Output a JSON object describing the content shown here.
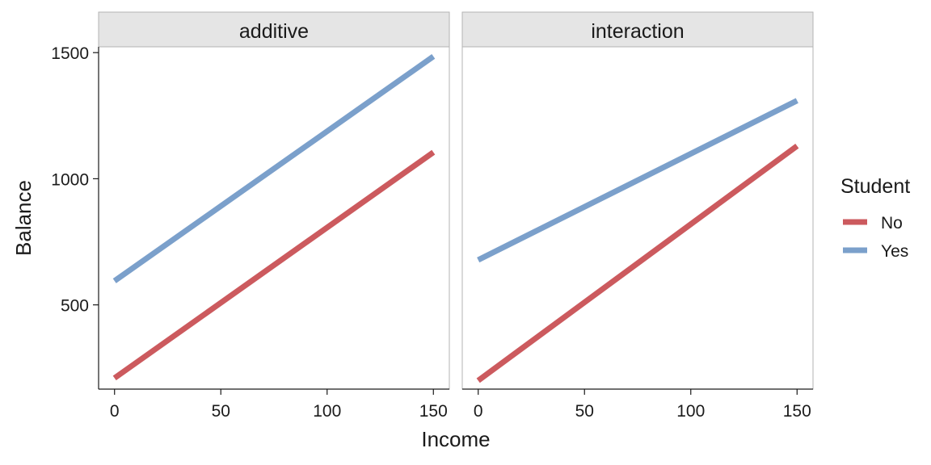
{
  "chart_data": {
    "type": "line",
    "facets": [
      {
        "label": "additive",
        "series": [
          {
            "name": "No",
            "x": [
              0,
              150
            ],
            "y": [
              210,
              1105
            ]
          },
          {
            "name": "Yes",
            "x": [
              0,
              150
            ],
            "y": [
              595,
              1485
            ]
          }
        ]
      },
      {
        "label": "interaction",
        "series": [
          {
            "name": "No",
            "x": [
              0,
              150
            ],
            "y": [
              200,
              1130
            ]
          },
          {
            "name": "Yes",
            "x": [
              0,
              150
            ],
            "y": [
              678,
              1310
            ]
          }
        ]
      }
    ],
    "xlabel": "Income",
    "ylabel": "Balance",
    "xticks": [
      0,
      50,
      100,
      150
    ],
    "yticks": [
      500,
      1000,
      1500
    ],
    "xlim": [
      -7.5,
      157.5
    ],
    "ylim": [
      166,
      1523
    ],
    "grid": false,
    "legend": {
      "title": "Student",
      "position": "right",
      "entries": [
        {
          "name": "No",
          "color": "#CC5A5E"
        },
        {
          "name": "Yes",
          "color": "#7BA0CB"
        }
      ]
    }
  }
}
